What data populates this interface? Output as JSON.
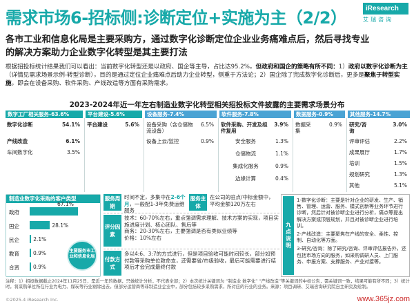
{
  "title": "需求市场6-招标侧:诊断定位+实施为主（2/2）",
  "logo": {
    "brand": "iResearch",
    "cn": "艾瑞咨询"
  },
  "headline": "各市工业和信息化局是主要采购方，通过数字化诊断定位企业业务痛难点后，然后寻找专业的解决方案助力企业数字化转型是其主要打法",
  "intro": {
    "p1": "根据招投标统计结果我们可以看出：当前数字化转型还是以政府、国企等主导，占比达95.2%。",
    "p1_bold": "但政府和国企的策略有所不同：",
    "p1_tail": "1）",
    "p2_bold": "政府以数字化诊断为主",
    "p2": "（详情见需求场景示例-转型诊断），目的是通过定位企业痛难点后助力企业转型，侧重于方法论；2）国企除了完成数字化诊断后，更多是",
    "p2_bold2": "聚焦于转型实施",
    "p2_tail": "，即会在设备采购、软件采购、产线改造等方面有采购需求。"
  },
  "section_title": "2023-2024年近一年左右制造业数字化转型相关招投标文件披露的主要需求场景分布",
  "columns": [
    {
      "head": "数字工厂相关服务-63.6%",
      "rows": [
        {
          "n": "数字化诊断",
          "v": "54.1%",
          "bold": true
        },
        {
          "n": "产线改造",
          "v": "6.1%",
          "bold": true
        },
        {
          "n": "车间数字化",
          "v": "3.5%"
        }
      ]
    },
    {
      "head": "平台建设-5.6%",
      "rows": [
        {
          "n": "平台建设",
          "v": "5.6%",
          "bold": true
        }
      ]
    },
    {
      "head": "设备服务-7.4%",
      "rows": [
        {
          "n": "设备采购（含仓储物流设备）",
          "v": "6.5%"
        },
        {
          "n": "设备上云/监控",
          "v": "0.9%"
        }
      ]
    },
    {
      "head": "软件服务-7.8%",
      "rows": [
        {
          "n": "软件采购、开发及组件复用",
          "v": "3.9%",
          "bold": true
        },
        {
          "n": "安全服务",
          "v": "1.3%"
        },
        {
          "n": "仓储物流",
          "v": "1.1%"
        },
        {
          "n": "集成化服务",
          "v": "0.9%"
        },
        {
          "n": "边缘计算",
          "v": "0.4%"
        }
      ]
    },
    {
      "head": "数据服务-0.9%",
      "rows": [
        {
          "n": "数据采集",
          "v": "0.9%"
        }
      ]
    },
    {
      "head": "其他服务-14.7%",
      "rows": [
        {
          "n": "研究/咨询",
          "v": "3.0%",
          "bold": true
        },
        {
          "n": "评审评估",
          "v": "2.2%"
        },
        {
          "n": "成果展厅",
          "v": "1.7%"
        },
        {
          "n": "培训",
          "v": "1.5%"
        },
        {
          "n": "规划研究",
          "v": "1.3%"
        },
        {
          "n": "其他",
          "v": "5.1%"
        }
      ]
    }
  ],
  "buyer_panel": {
    "head": "制造业数字化采购的客户类型",
    "items": [
      {
        "label": "政府",
        "value": "67.1%",
        "num": 67.1
      },
      {
        "label": "国企",
        "value": "28.1%",
        "num": 28.1
      },
      {
        "label": "民企",
        "value": "2.1%",
        "num": 2.1
      },
      {
        "label": "教育",
        "value": "0.9%",
        "num": 0.9
      },
      {
        "label": "合资",
        "value": "0.9%",
        "num": 0.9
      }
    ],
    "bubble": "主要服务市工业和信息化局"
  },
  "info": [
    {
      "label": "服务周期",
      "text_a": "时间不定，多集中在",
      "text_b": "2-6个月",
      "text_c": "，一般配1-3年免费运维服务",
      "label2": "服务主体",
      "text2": "在公司的驻点/中标金额中，平均金额120万左右"
    },
    {
      "label": "评分因素",
      "lines": [
        "技术：60-70%左右，重点强调需求理解、技术方案的实现，项目实施进度计划、核心团队、售后等",
        "商务：20-30%左右，主要强调是否有类似业绩等",
        "价格：10%左右"
      ]
    },
    {
      "label": "付款方式",
      "text": "多以4:6、3:7的方式进行，但是项目验收可能时间较长，部分如预付款等采购单位致命支，还需要省/市级验收，最后可能需要进行结项后才会完成最终付款"
    }
  ],
  "points": {
    "label": "九点说明",
    "items": [
      "1-数字化诊断：主要是针对企业的研发、生产、销售、管理、运营、服务、模式创新等业务环节进行诊断，然后针对被诊断企业进行分析，痛点等提出解决方案或顶层规划，并且对被诊断企业进行培训。",
      "2-产线改造：主要聚焦在产线的安全、柔性、控制、自动化等方面。",
      "3-研究/咨询：除了研究/咨询、评审评估报告外，还包括市场方向的服务，如采购调研人员、上门服务、申报方案、支撑服务、产业对接等。"
    ]
  },
  "note": "注释：1）招投数据截止2024年11月25日，是近一年的数据，只做统计分析，不代表全部；2）本次统计关键词为 “制造业 数字化” “产线改造”等关键词的中标公告，需关键词一致，结果可能有所不同；3）统计时，将采购单位所在行业为电力、煤炭等行业剔除出去，但部分运营商等非制造业企业中，部分包括较多采购需求，所对应的行业的业务。来源：项目调研、艾瑞咨询研究院自主研究及绘制。",
  "footer": "©2025.4 iResearch Inc.",
  "watermark": "www.365jz.com",
  "colors": {
    "accent": "#17a9a9",
    "head_alt": "#4aa3d4"
  }
}
